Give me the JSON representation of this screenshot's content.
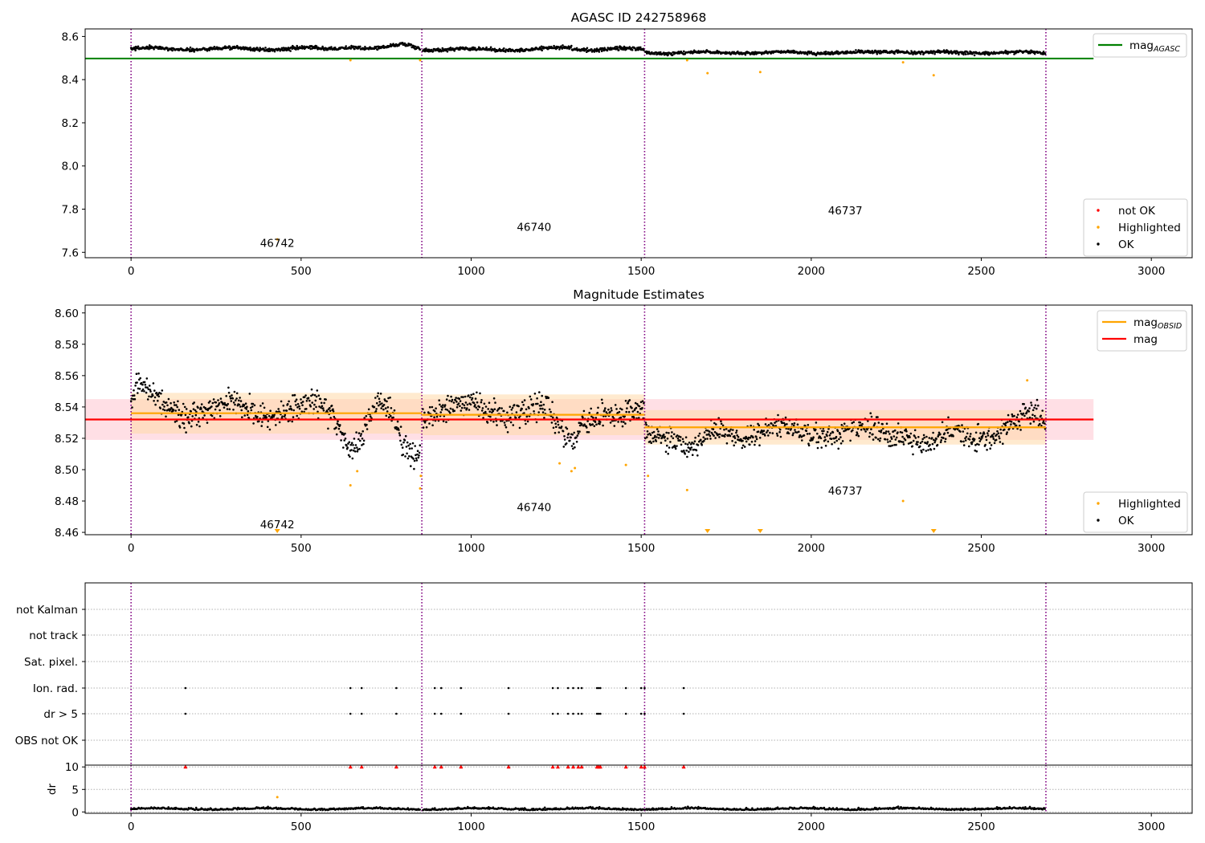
{
  "colors": {
    "ok": "#000000",
    "highlighted": "#ffa500",
    "not_ok": "#ff0000",
    "mag_agasc": "#008000",
    "mag_obsid": "#ffa500",
    "mag": "#ff0000",
    "obsid_sep": "#800080",
    "band_mag": "#ffc0cb",
    "band_obsid": "#ffd8a8",
    "grid": "#b0b0b0"
  },
  "chart_data": [
    {
      "type": "scatter",
      "title": "AGASC ID 242758968",
      "xlim": [
        -135,
        3120
      ],
      "ylim": [
        7.575,
        8.635
      ],
      "xticks": [
        0,
        500,
        1000,
        1500,
        2000,
        2500,
        3000
      ],
      "yticks": [
        7.6,
        7.8,
        8.0,
        8.2,
        8.4,
        8.6
      ],
      "tick_decimals": 1,
      "obsid_boundaries": [
        0,
        855,
        1510,
        2690
      ],
      "obsids": [
        {
          "label": "46742",
          "x": 430,
          "y": 7.625
        },
        {
          "label": "46740",
          "x": 1185,
          "y": 7.7
        },
        {
          "label": "46737",
          "x": 2100,
          "y": 7.775
        }
      ],
      "lines": [
        {
          "name": "mag_AGASC",
          "color_key": "mag_agasc",
          "x": [
            -135,
            2830
          ],
          "y": [
            8.498,
            8.498
          ]
        }
      ],
      "bands": [],
      "ok_segments": [
        {
          "x0": 0,
          "x1": 850,
          "mean": 8.543,
          "spread": 0.008,
          "features": [
            [
              640,
              0.01
            ],
            [
              800,
              0.02
            ]
          ]
        },
        {
          "x0": 858,
          "x1": 1508,
          "mean": 8.54,
          "spread": 0.008,
          "features": [
            [
              1280,
              0.01
            ]
          ]
        },
        {
          "x0": 1512,
          "x1": 2688,
          "mean": 8.525,
          "spread": 0.007,
          "features": [
            [
              2250,
              0.008
            ]
          ]
        }
      ],
      "highlighted": [
        {
          "x": 430,
          "y": 7.66
        },
        {
          "x": 645,
          "y": 8.49
        },
        {
          "x": 850,
          "y": 8.49
        },
        {
          "x": 1635,
          "y": 8.49
        },
        {
          "x": 1695,
          "y": 8.43
        },
        {
          "x": 1850,
          "y": 8.435
        },
        {
          "x": 2270,
          "y": 8.48
        },
        {
          "x": 2360,
          "y": 8.42
        }
      ],
      "legend_top": [
        {
          "label": "mag",
          "sub": "AGASC",
          "color_key": "mag_agasc",
          "kind": "line"
        }
      ],
      "legend_bottom": [
        {
          "label": "not OK",
          "color_key": "not_ok",
          "kind": "dot"
        },
        {
          "label": "Highlighted",
          "color_key": "highlighted",
          "kind": "dot"
        },
        {
          "label": "OK",
          "color_key": "ok",
          "kind": "dot"
        }
      ]
    },
    {
      "type": "scatter",
      "title": "Magnitude Estimates",
      "xlim": [
        -135,
        3120
      ],
      "ylim": [
        8.4585,
        8.605
      ],
      "xticks": [
        0,
        500,
        1000,
        1500,
        2000,
        2500,
        3000
      ],
      "yticks": [
        8.46,
        8.48,
        8.5,
        8.52,
        8.54,
        8.56,
        8.58,
        8.6
      ],
      "tick_decimals": 2,
      "obsid_boundaries": [
        0,
        855,
        1510,
        2690
      ],
      "obsids": [
        {
          "label": "46742",
          "x": 430,
          "y": 8.4625
        },
        {
          "label": "46740",
          "x": 1185,
          "y": 8.4735
        },
        {
          "label": "46737",
          "x": 2100,
          "y": 8.484
        }
      ],
      "lines": [
        {
          "name": "mag_OBSID",
          "color_key": "mag_obsid",
          "x": [
            0,
            855
          ],
          "y": [
            8.536,
            8.536
          ]
        },
        {
          "name": "mag_OBSID",
          "color_key": "mag_obsid",
          "x": [
            855,
            1510
          ],
          "y": [
            8.535,
            8.535
          ]
        },
        {
          "name": "mag_OBSID",
          "color_key": "mag_obsid",
          "x": [
            1510,
            2690
          ],
          "y": [
            8.527,
            8.527
          ]
        },
        {
          "name": "mag",
          "color_key": "mag",
          "x": [
            -135,
            2830
          ],
          "y": [
            8.532,
            8.532
          ]
        }
      ],
      "bands": [
        {
          "color_key": "band_mag",
          "opacity": 0.5,
          "x0": -135,
          "x1": 2830,
          "y0": 8.519,
          "y1": 8.545
        },
        {
          "color_key": "band_obsid",
          "opacity": 0.55,
          "x0": 0,
          "x1": 855,
          "y0": 8.523,
          "y1": 8.549
        },
        {
          "color_key": "band_obsid",
          "opacity": 0.55,
          "x0": 855,
          "x1": 1510,
          "y0": 8.522,
          "y1": 8.548
        },
        {
          "color_key": "band_obsid",
          "opacity": 0.55,
          "x0": 1510,
          "x1": 2690,
          "y0": 8.516,
          "y1": 8.538
        }
      ],
      "ok_segments": [
        {
          "x0": 0,
          "x1": 850,
          "mean": 8.538,
          "spread": 0.008,
          "features": [
            [
              30,
              0.012
            ],
            [
              650,
              -0.02
            ],
            [
              820,
              -0.028
            ]
          ]
        },
        {
          "x0": 858,
          "x1": 1508,
          "mean": 8.538,
          "spread": 0.008,
          "features": [
            [
              1280,
              -0.018
            ],
            [
              1440,
              -0.008
            ]
          ]
        },
        {
          "x0": 1512,
          "x1": 2688,
          "mean": 8.524,
          "spread": 0.007,
          "features": [
            [
              1650,
              -0.012
            ],
            [
              2350,
              -0.01
            ],
            [
              2650,
              0.012
            ]
          ]
        }
      ],
      "highlighted": [
        {
          "x": 645,
          "y": 8.49
        },
        {
          "x": 665,
          "y": 8.499
        },
        {
          "x": 850,
          "y": 8.488
        },
        {
          "x": 852,
          "y": 8.496
        },
        {
          "x": 1260,
          "y": 8.504
        },
        {
          "x": 1295,
          "y": 8.499
        },
        {
          "x": 1305,
          "y": 8.501
        },
        {
          "x": 1455,
          "y": 8.503
        },
        {
          "x": 1520,
          "y": 8.496
        },
        {
          "x": 1635,
          "y": 8.487
        },
        {
          "x": 2270,
          "y": 8.48
        },
        {
          "x": 2635,
          "y": 8.557
        }
      ],
      "out_of_range_markers": [
        430,
        1695,
        1850,
        2360
      ],
      "legend_top": [
        {
          "label": "mag",
          "sub": "OBSID",
          "color_key": "mag_obsid",
          "kind": "line"
        },
        {
          "label": "mag",
          "sub": "",
          "color_key": "mag",
          "kind": "line"
        }
      ],
      "legend_bottom": [
        {
          "label": "Highlighted",
          "color_key": "highlighted",
          "kind": "dot"
        },
        {
          "label": "OK",
          "color_key": "ok",
          "kind": "dot"
        }
      ]
    },
    {
      "type": "scatter",
      "title": "",
      "xlim": [
        -135,
        3120
      ],
      "xticks": [
        0,
        500,
        1000,
        1500,
        2000,
        2500,
        3000
      ],
      "obsid_boundaries": [
        0,
        855,
        1510,
        2690
      ],
      "flag_rows": [
        "not Kalman",
        "not track",
        "Sat. pixel.",
        "Ion. rad.",
        "dr > 5",
        "OBS not OK"
      ],
      "flag_events": {
        "Ion. rad.": [
          160,
          645,
          678,
          780,
          893,
          912,
          970,
          1110,
          1240,
          1255,
          1285,
          1300,
          1315,
          1325,
          1370,
          1375,
          1380,
          1455,
          1500,
          1510,
          1625
        ],
        "dr > 5": [
          160,
          645,
          678,
          780,
          893,
          912,
          970,
          1110,
          1240,
          1255,
          1285,
          1300,
          1315,
          1325,
          1370,
          1375,
          1380,
          1455,
          1500,
          1510,
          1625
        ]
      },
      "dr": {
        "ylabel": "dr",
        "ylim": [
          -0.3,
          10.4
        ],
        "yticks": [
          0,
          5,
          10
        ],
        "baseline_segments": [
          {
            "x0": 0,
            "x1": 850
          },
          {
            "x0": 858,
            "x1": 1508
          },
          {
            "x0": 1512,
            "x1": 2688
          }
        ],
        "highlighted": [
          {
            "x": 430,
            "y": 3.3
          }
        ],
        "clipped_at_10": [
          160,
          645,
          678,
          780,
          893,
          912,
          970,
          1110,
          1240,
          1255,
          1285,
          1300,
          1315,
          1325,
          1370,
          1375,
          1380,
          1455,
          1500,
          1510,
          1625
        ]
      }
    }
  ]
}
